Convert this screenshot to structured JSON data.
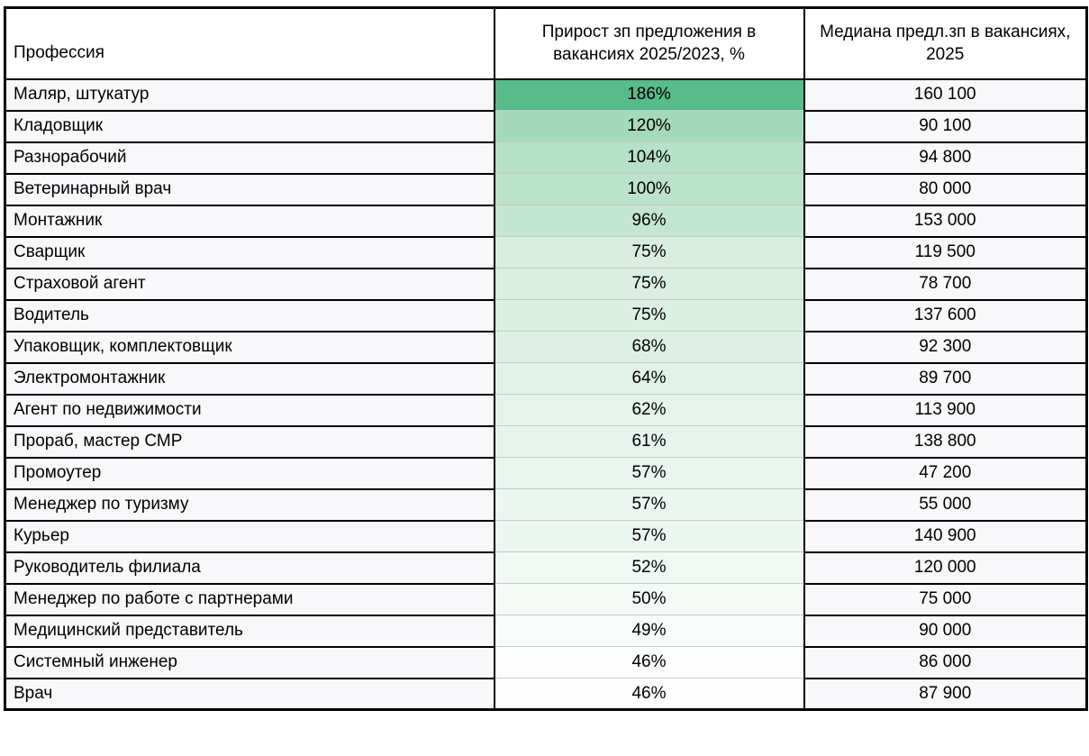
{
  "chart_data": {
    "type": "table",
    "columns": [
      "Профессия",
      "Прирост зп предложения в вакансиях 2025/2023, %",
      "Медиана предл.зп в вакансиях, 2025"
    ],
    "rows": [
      {
        "profession": "Маляр, штукатур",
        "growth_pct": 186,
        "growth_label": "186%",
        "median_label": "160 100",
        "heat_color": "#57bb8a"
      },
      {
        "profession": "Кладовщик",
        "growth_pct": 120,
        "growth_label": "120%",
        "median_label": "90 100",
        "heat_color": "#a5d9bc"
      },
      {
        "profession": "Разнорабочий",
        "growth_pct": 104,
        "growth_label": "104%",
        "median_label": "94 800",
        "heat_color": "#b7e0c8"
      },
      {
        "profession": "Ветеринарный врач",
        "growth_pct": 100,
        "growth_label": "100%",
        "median_label": "80 000",
        "heat_color": "#bce2cc"
      },
      {
        "profession": "Монтажник",
        "growth_pct": 96,
        "growth_label": "96%",
        "median_label": "153 000",
        "heat_color": "#c3e5d2"
      },
      {
        "profession": "Сварщик",
        "growth_pct": 75,
        "growth_label": "75%",
        "median_label": "119 500",
        "heat_color": "#d8eddf"
      },
      {
        "profession": "Страховой агент",
        "growth_pct": 75,
        "growth_label": "75%",
        "median_label": "78 700",
        "heat_color": "#daeee1"
      },
      {
        "profession": "Водитель",
        "growth_pct": 75,
        "growth_label": "75%",
        "median_label": "137 600",
        "heat_color": "#dbefe2"
      },
      {
        "profession": "Упаковщик, комплектовщик",
        "growth_pct": 68,
        "growth_label": "68%",
        "median_label": "92 300",
        "heat_color": "#def0e5"
      },
      {
        "profession": "Электромонтажник",
        "growth_pct": 64,
        "growth_label": "64%",
        "median_label": "89 700",
        "heat_color": "#e1f2e8"
      },
      {
        "profession": "Агент по недвижимости",
        "growth_pct": 62,
        "growth_label": "62%",
        "median_label": "113 900",
        "heat_color": "#e5f3eb"
      },
      {
        "profession": "Прораб, мастер СМР",
        "growth_pct": 61,
        "growth_label": "61%",
        "median_label": "138 800",
        "heat_color": "#e7f4ed"
      },
      {
        "profession": "Промоутер",
        "growth_pct": 57,
        "growth_label": "57%",
        "median_label": "47 200",
        "heat_color": "#eaf5ef"
      },
      {
        "profession": "Менеджер по туризму",
        "growth_pct": 57,
        "growth_label": "57%",
        "median_label": "55 000",
        "heat_color": "#ecf6f0"
      },
      {
        "profession": "Курьер",
        "growth_pct": 57,
        "growth_label": "57%",
        "median_label": "140 900",
        "heat_color": "#edf7f1"
      },
      {
        "profession": "Руководитель филиала",
        "growth_pct": 52,
        "growth_label": "52%",
        "median_label": "120 000",
        "heat_color": "#f1f9f4"
      },
      {
        "profession": "Менеджер по работе с партнерами",
        "growth_pct": 50,
        "growth_label": "50%",
        "median_label": "75 000",
        "heat_color": "#f5faf7"
      },
      {
        "profession": "Медицинский представитель",
        "growth_pct": 49,
        "growth_label": "49%",
        "median_label": "90 000",
        "heat_color": "#f8fcfa"
      },
      {
        "profession": "Системный инженер",
        "growth_pct": 46,
        "growth_label": "46%",
        "median_label": "86 000",
        "heat_color": "#fcfdfc"
      },
      {
        "profession": "Врач",
        "growth_pct": 46,
        "growth_label": "46%",
        "median_label": "87 900",
        "heat_color": "#fefefe"
      }
    ],
    "heatmap": {
      "applies_to": "growth_pct",
      "min_value": 46,
      "max_value": 186,
      "min_color": "#ffffff",
      "max_color": "#57bb8a"
    },
    "layout": {
      "header_bg": "#ffffff",
      "data_cell_bg": "#f8f8fa",
      "border_color": "#000000",
      "heat_row_separator_color": "#c6c9c8"
    }
  }
}
